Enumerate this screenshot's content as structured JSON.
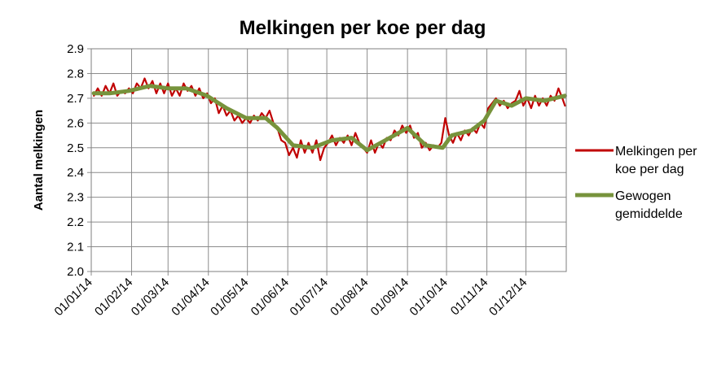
{
  "chart_data": {
    "type": "line",
    "title": "Melkingen per koe per dag",
    "xlabel": "",
    "ylabel": "Aantal melkingen",
    "x_ticks": [
      "01/01/14",
      "01/02/14",
      "01/03/14",
      "01/04/14",
      "01/05/14",
      "01/06/14",
      "01/07/14",
      "01/08/14",
      "01/09/14",
      "01/10/14",
      "01/11/14",
      "01/12/14"
    ],
    "x_range": [
      "2014-01-01",
      "2014-12-31"
    ],
    "y_ticks": [
      "2.0",
      "2.1",
      "2.2",
      "2.3",
      "2.4",
      "2.5",
      "2.6",
      "2.7",
      "2.8",
      "2.9"
    ],
    "ylim": [
      2.0,
      2.9
    ],
    "grid": true,
    "legend_position": "right",
    "series": [
      {
        "name": "Melkingen per koe per dag",
        "legend_lines": [
          "Melkingen per",
          "koe per dag"
        ],
        "color": "#c00000",
        "style": "thin",
        "points": [
          [
            "2014-01-03",
            2.71
          ],
          [
            "2014-01-06",
            2.74
          ],
          [
            "2014-01-09",
            2.71
          ],
          [
            "2014-01-12",
            2.75
          ],
          [
            "2014-01-15",
            2.72
          ],
          [
            "2014-01-18",
            2.76
          ],
          [
            "2014-01-21",
            2.71
          ],
          [
            "2014-01-24",
            2.73
          ],
          [
            "2014-01-27",
            2.72
          ],
          [
            "2014-01-30",
            2.74
          ],
          [
            "2014-02-02",
            2.72
          ],
          [
            "2014-02-05",
            2.76
          ],
          [
            "2014-02-08",
            2.74
          ],
          [
            "2014-02-11",
            2.78
          ],
          [
            "2014-02-14",
            2.74
          ],
          [
            "2014-02-17",
            2.77
          ],
          [
            "2014-02-20",
            2.72
          ],
          [
            "2014-02-23",
            2.76
          ],
          [
            "2014-02-26",
            2.72
          ],
          [
            "2014-03-01",
            2.76
          ],
          [
            "2014-03-04",
            2.71
          ],
          [
            "2014-03-07",
            2.74
          ],
          [
            "2014-03-10",
            2.71
          ],
          [
            "2014-03-13",
            2.76
          ],
          [
            "2014-03-16",
            2.73
          ],
          [
            "2014-03-19",
            2.75
          ],
          [
            "2014-03-22",
            2.71
          ],
          [
            "2014-03-25",
            2.74
          ],
          [
            "2014-03-28",
            2.7
          ],
          [
            "2014-03-31",
            2.72
          ],
          [
            "2014-04-03",
            2.68
          ],
          [
            "2014-04-06",
            2.7
          ],
          [
            "2014-04-09",
            2.64
          ],
          [
            "2014-04-12",
            2.67
          ],
          [
            "2014-04-15",
            2.63
          ],
          [
            "2014-04-18",
            2.65
          ],
          [
            "2014-04-21",
            2.61
          ],
          [
            "2014-04-24",
            2.63
          ],
          [
            "2014-04-27",
            2.6
          ],
          [
            "2014-04-30",
            2.62
          ],
          [
            "2014-05-03",
            2.6
          ],
          [
            "2014-05-06",
            2.63
          ],
          [
            "2014-05-09",
            2.61
          ],
          [
            "2014-05-12",
            2.64
          ],
          [
            "2014-05-15",
            2.62
          ],
          [
            "2014-05-18",
            2.65
          ],
          [
            "2014-05-21",
            2.6
          ],
          [
            "2014-05-24",
            2.58
          ],
          [
            "2014-05-27",
            2.53
          ],
          [
            "2014-05-30",
            2.52
          ],
          [
            "2014-06-02",
            2.47
          ],
          [
            "2014-06-05",
            2.5
          ],
          [
            "2014-06-08",
            2.46
          ],
          [
            "2014-06-11",
            2.53
          ],
          [
            "2014-06-14",
            2.48
          ],
          [
            "2014-06-17",
            2.52
          ],
          [
            "2014-06-20",
            2.48
          ],
          [
            "2014-06-23",
            2.53
          ],
          [
            "2014-06-26",
            2.45
          ],
          [
            "2014-06-29",
            2.5
          ],
          [
            "2014-07-02",
            2.52
          ],
          [
            "2014-07-05",
            2.55
          ],
          [
            "2014-07-08",
            2.51
          ],
          [
            "2014-07-11",
            2.54
          ],
          [
            "2014-07-14",
            2.52
          ],
          [
            "2014-07-17",
            2.55
          ],
          [
            "2014-07-20",
            2.51
          ],
          [
            "2014-07-23",
            2.56
          ],
          [
            "2014-07-26",
            2.52
          ],
          [
            "2014-07-29",
            2.5
          ],
          [
            "2014-08-01",
            2.48
          ],
          [
            "2014-08-04",
            2.53
          ],
          [
            "2014-08-07",
            2.48
          ],
          [
            "2014-08-10",
            2.52
          ],
          [
            "2014-08-13",
            2.5
          ],
          [
            "2014-08-16",
            2.54
          ],
          [
            "2014-08-19",
            2.53
          ],
          [
            "2014-08-22",
            2.57
          ],
          [
            "2014-08-25",
            2.55
          ],
          [
            "2014-08-28",
            2.59
          ],
          [
            "2014-08-31",
            2.56
          ],
          [
            "2014-09-03",
            2.59
          ],
          [
            "2014-09-06",
            2.54
          ],
          [
            "2014-09-09",
            2.56
          ],
          [
            "2014-09-12",
            2.5
          ],
          [
            "2014-09-15",
            2.52
          ],
          [
            "2014-09-18",
            2.49
          ],
          [
            "2014-09-21",
            2.51
          ],
          [
            "2014-09-24",
            2.5
          ],
          [
            "2014-09-27",
            2.52
          ],
          [
            "2014-09-30",
            2.62
          ],
          [
            "2014-10-03",
            2.55
          ],
          [
            "2014-10-06",
            2.52
          ],
          [
            "2014-10-09",
            2.56
          ],
          [
            "2014-10-12",
            2.53
          ],
          [
            "2014-10-15",
            2.57
          ],
          [
            "2014-10-18",
            2.55
          ],
          [
            "2014-10-21",
            2.58
          ],
          [
            "2014-10-24",
            2.56
          ],
          [
            "2014-10-27",
            2.6
          ],
          [
            "2014-10-30",
            2.58
          ],
          [
            "2014-11-02",
            2.66
          ],
          [
            "2014-11-05",
            2.68
          ],
          [
            "2014-11-08",
            2.7
          ],
          [
            "2014-11-11",
            2.67
          ],
          [
            "2014-11-14",
            2.69
          ],
          [
            "2014-11-17",
            2.66
          ],
          [
            "2014-11-20",
            2.68
          ],
          [
            "2014-11-23",
            2.69
          ],
          [
            "2014-11-26",
            2.73
          ],
          [
            "2014-11-29",
            2.67
          ],
          [
            "2014-12-02",
            2.7
          ],
          [
            "2014-12-05",
            2.66
          ],
          [
            "2014-12-08",
            2.71
          ],
          [
            "2014-12-11",
            2.67
          ],
          [
            "2014-12-14",
            2.7
          ],
          [
            "2014-12-17",
            2.67
          ],
          [
            "2014-12-20",
            2.71
          ],
          [
            "2014-12-23",
            2.69
          ],
          [
            "2014-12-26",
            2.74
          ],
          [
            "2014-12-29",
            2.7
          ],
          [
            "2014-12-31",
            2.67
          ]
        ]
      },
      {
        "name": "Gewogen gemiddelde",
        "legend_lines": [
          "Gewogen",
          "gemiddelde"
        ],
        "color": "#77933c",
        "style": "thick",
        "points": [
          [
            "2014-01-03",
            2.72
          ],
          [
            "2014-01-15",
            2.72
          ],
          [
            "2014-01-30",
            2.73
          ],
          [
            "2014-02-15",
            2.75
          ],
          [
            "2014-03-01",
            2.74
          ],
          [
            "2014-03-15",
            2.74
          ],
          [
            "2014-03-31",
            2.71
          ],
          [
            "2014-04-15",
            2.66
          ],
          [
            "2014-04-30",
            2.62
          ],
          [
            "2014-05-15",
            2.62
          ],
          [
            "2014-05-24",
            2.58
          ],
          [
            "2014-06-05",
            2.51
          ],
          [
            "2014-06-20",
            2.5
          ],
          [
            "2014-07-05",
            2.53
          ],
          [
            "2014-07-20",
            2.54
          ],
          [
            "2014-08-01",
            2.49
          ],
          [
            "2014-08-15",
            2.53
          ],
          [
            "2014-09-01",
            2.58
          ],
          [
            "2014-09-15",
            2.51
          ],
          [
            "2014-09-28",
            2.5
          ],
          [
            "2014-10-05",
            2.55
          ],
          [
            "2014-10-20",
            2.57
          ],
          [
            "2014-10-30",
            2.61
          ],
          [
            "2014-11-08",
            2.69
          ],
          [
            "2014-11-20",
            2.67
          ],
          [
            "2014-12-01",
            2.7
          ],
          [
            "2014-12-15",
            2.69
          ],
          [
            "2014-12-31",
            2.71
          ]
        ]
      }
    ]
  }
}
